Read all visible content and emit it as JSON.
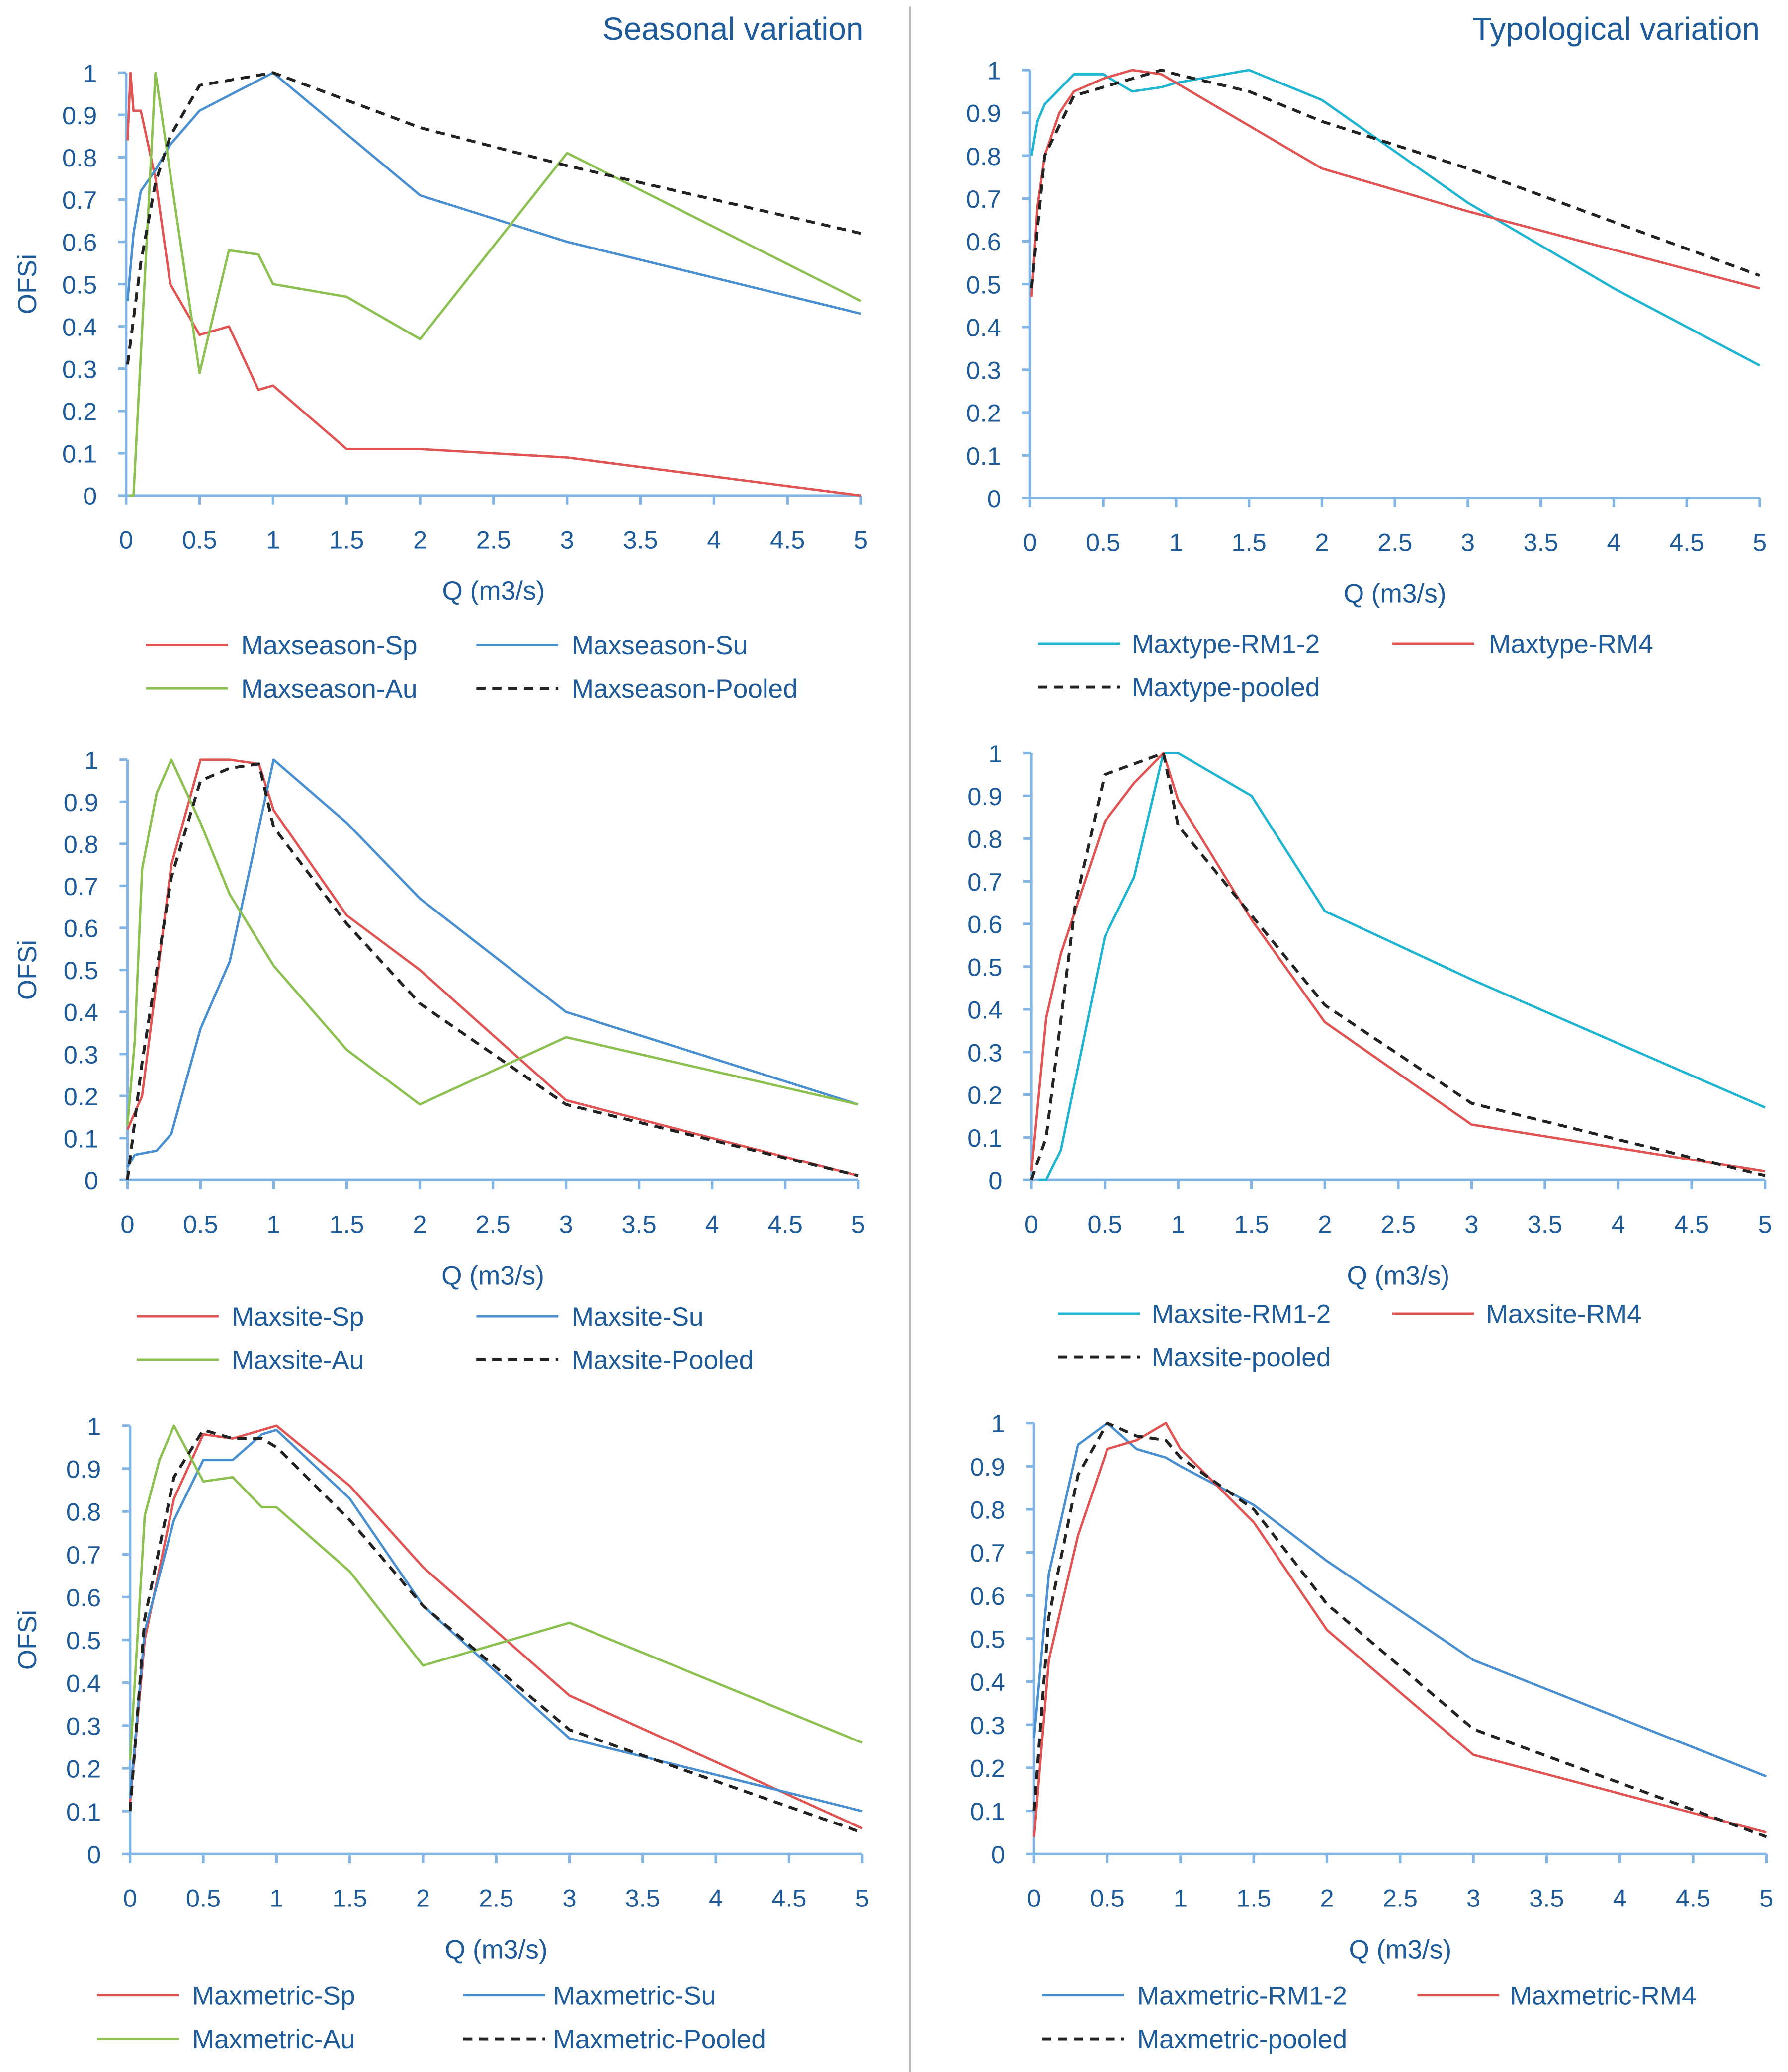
{
  "titles": {
    "left": "Seasonal variation",
    "right": "Typological variation"
  },
  "colors": {
    "red": "#e05454",
    "blue": "#4a8fd0",
    "green": "#8cc152",
    "cyan": "#1fb4cf",
    "black": "#222222",
    "axis": "#82b5e3",
    "divider": "#bbbbbb"
  },
  "chart_data": [
    {
      "type": "line",
      "panel": "seasonal-maxseason",
      "xlabel": "Q (m3/s)",
      "ylabel": "OFSi",
      "xlim": [
        0,
        5
      ],
      "ylim": [
        0,
        1
      ],
      "xticks": [
        "0",
        "0.5",
        "1",
        "1.5",
        "2",
        "2.5",
        "3",
        "3.5",
        "4",
        "4.5",
        "5"
      ],
      "yticks": [
        "0",
        "0.1",
        "0.2",
        "0.3",
        "0.4",
        "0.5",
        "0.6",
        "0.7",
        "0.8",
        "0.9",
        "1"
      ],
      "legend": "bottom",
      "series": [
        {
          "name": "Maxseason-Sp",
          "color": "red",
          "dash": false,
          "x": [
            0.01,
            0.03,
            0.05,
            0.1,
            0.2,
            0.3,
            0.5,
            0.7,
            0.9,
            1,
            1.5,
            2,
            3,
            5
          ],
          "y": [
            0.84,
            1.0,
            0.91,
            0.91,
            0.75,
            0.5,
            0.38,
            0.4,
            0.25,
            0.26,
            0.11,
            0.11,
            0.09,
            0.0
          ]
        },
        {
          "name": "Maxseason-Su",
          "color": "blue",
          "dash": false,
          "x": [
            0.01,
            0.05,
            0.1,
            0.2,
            0.3,
            0.5,
            1,
            2,
            3,
            5
          ],
          "y": [
            0.46,
            0.62,
            0.72,
            0.77,
            0.83,
            0.91,
            1.0,
            0.71,
            0.6,
            0.43
          ]
        },
        {
          "name": "Maxseason-Au",
          "color": "green",
          "dash": false,
          "x": [
            0.02,
            0.05,
            0.2,
            0.5,
            0.7,
            0.9,
            1,
            1.5,
            2,
            3,
            5
          ],
          "y": [
            0,
            0,
            1.0,
            0.29,
            0.58,
            0.57,
            0.5,
            0.47,
            0.37,
            0.81,
            0.46
          ]
        },
        {
          "name": "Maxseason-Pooled",
          "color": "black",
          "dash": true,
          "x": [
            0.01,
            0.1,
            0.2,
            0.3,
            0.5,
            1,
            2,
            3,
            5
          ],
          "y": [
            0.31,
            0.55,
            0.74,
            0.85,
            0.97,
            1.0,
            0.87,
            0.78,
            0.62
          ]
        }
      ]
    },
    {
      "type": "line",
      "panel": "typological-maxtype",
      "xlabel": "Q (m3/s)",
      "ylabel": "",
      "xlim": [
        0,
        5
      ],
      "ylim": [
        0,
        1
      ],
      "xticks": [
        "0",
        "0.5",
        "1",
        "1.5",
        "2",
        "2.5",
        "3",
        "3.5",
        "4",
        "4.5",
        "5"
      ],
      "yticks": [
        "0",
        "0.1",
        "0.2",
        "0.3",
        "0.4",
        "0.5",
        "0.6",
        "0.7",
        "0.8",
        "0.9",
        "1"
      ],
      "legend": "bottom",
      "series": [
        {
          "name": "Maxtype-RM1-2",
          "color": "cyan",
          "dash": false,
          "x": [
            0.01,
            0.05,
            0.1,
            0.3,
            0.5,
            0.7,
            0.9,
            1,
            1.5,
            2,
            3,
            4,
            5
          ],
          "y": [
            0.8,
            0.88,
            0.92,
            0.99,
            0.99,
            0.95,
            0.96,
            0.97,
            1.0,
            0.93,
            0.69,
            0.49,
            0.31
          ]
        },
        {
          "name": "Maxtype-RM4",
          "color": "red",
          "dash": false,
          "x": [
            0.01,
            0.05,
            0.1,
            0.2,
            0.3,
            0.5,
            0.7,
            0.9,
            1,
            2,
            3,
            5
          ],
          "y": [
            0.47,
            0.68,
            0.8,
            0.9,
            0.95,
            0.98,
            1.0,
            0.99,
            0.97,
            0.77,
            0.67,
            0.49
          ]
        },
        {
          "name": "Maxtype-pooled",
          "color": "black",
          "dash": true,
          "x": [
            0.01,
            0.1,
            0.3,
            0.5,
            0.7,
            0.9,
            1,
            1.5,
            2,
            3,
            5
          ],
          "y": [
            0.49,
            0.8,
            0.94,
            0.96,
            0.98,
            1.0,
            0.99,
            0.95,
            0.88,
            0.77,
            0.52
          ]
        }
      ]
    },
    {
      "type": "line",
      "panel": "seasonal-maxsite",
      "xlabel": "Q (m3/s)",
      "ylabel": "OFSi",
      "xlim": [
        0,
        5
      ],
      "ylim": [
        0,
        1
      ],
      "xticks": [
        "0",
        "0.5",
        "1",
        "1.5",
        "2",
        "2.5",
        "3",
        "3.5",
        "4",
        "4.5",
        "5"
      ],
      "yticks": [
        "0",
        "0.1",
        "0.2",
        "0.3",
        "0.4",
        "0.5",
        "0.6",
        "0.7",
        "0.8",
        "0.9",
        "1"
      ],
      "legend": "bottom",
      "series": [
        {
          "name": "Maxsite-Sp",
          "color": "red",
          "dash": false,
          "x": [
            0,
            0.1,
            0.3,
            0.5,
            0.7,
            0.9,
            1,
            1.5,
            2,
            3,
            5
          ],
          "y": [
            0.12,
            0.2,
            0.75,
            1.0,
            1.0,
            0.99,
            0.88,
            0.63,
            0.5,
            0.19,
            0.01
          ]
        },
        {
          "name": "Maxsite-Su",
          "color": "blue",
          "dash": false,
          "x": [
            0,
            0.05,
            0.2,
            0.3,
            0.5,
            0.7,
            1,
            1.5,
            2,
            3,
            5
          ],
          "y": [
            0.03,
            0.06,
            0.07,
            0.11,
            0.36,
            0.52,
            1.0,
            0.85,
            0.67,
            0.4,
            0.18
          ]
        },
        {
          "name": "Maxsite-Au",
          "color": "green",
          "dash": false,
          "x": [
            0,
            0.05,
            0.1,
            0.2,
            0.3,
            0.5,
            0.7,
            1,
            1.5,
            2,
            3,
            5
          ],
          "y": [
            0.13,
            0.33,
            0.74,
            0.92,
            1.0,
            0.85,
            0.68,
            0.51,
            0.31,
            0.18,
            0.34,
            0.18
          ]
        },
        {
          "name": "Maxsite-Pooled",
          "color": "black",
          "dash": true,
          "x": [
            0,
            0.1,
            0.3,
            0.5,
            0.7,
            0.9,
            1,
            1.5,
            2,
            3,
            5
          ],
          "y": [
            0.0,
            0.28,
            0.72,
            0.95,
            0.98,
            0.99,
            0.84,
            0.61,
            0.42,
            0.18,
            0.01
          ]
        }
      ]
    },
    {
      "type": "line",
      "panel": "typological-maxsite",
      "xlabel": "Q (m3/s)",
      "ylabel": "",
      "xlim": [
        0,
        5
      ],
      "ylim": [
        0,
        1
      ],
      "xticks": [
        "0",
        "0.5",
        "1",
        "1.5",
        "2",
        "2.5",
        "3",
        "3.5",
        "4",
        "4.5",
        "5"
      ],
      "yticks": [
        "0",
        "0.1",
        "0.2",
        "0.3",
        "0.4",
        "0.5",
        "0.6",
        "0.7",
        "0.8",
        "0.9",
        "1"
      ],
      "legend": "bottom",
      "series": [
        {
          "name": "Maxsite-RM1-2",
          "color": "cyan",
          "dash": false,
          "x": [
            0.05,
            0.1,
            0.2,
            0.5,
            0.7,
            0.9,
            1,
            1.5,
            2,
            3,
            5
          ],
          "y": [
            0,
            0.0,
            0.07,
            0.57,
            0.71,
            1.0,
            1.0,
            0.9,
            0.63,
            0.47,
            0.17
          ]
        },
        {
          "name": "Maxsite-RM4",
          "color": "red",
          "dash": false,
          "x": [
            0,
            0.1,
            0.2,
            0.5,
            0.7,
            0.9,
            1,
            1.5,
            2,
            3,
            5
          ],
          "y": [
            0.02,
            0.38,
            0.53,
            0.84,
            0.93,
            1.0,
            0.89,
            0.61,
            0.37,
            0.13,
            0.02
          ]
        },
        {
          "name": "Maxsite-pooled",
          "color": "black",
          "dash": true,
          "x": [
            0,
            0.1,
            0.3,
            0.5,
            0.9,
            1,
            1.5,
            2,
            3,
            5
          ],
          "y": [
            0.0,
            0.1,
            0.65,
            0.95,
            1.0,
            0.83,
            0.62,
            0.41,
            0.18,
            0.01
          ]
        }
      ]
    },
    {
      "type": "line",
      "panel": "seasonal-maxmetric",
      "xlabel": "Q (m3/s)",
      "ylabel": "OFSi",
      "xlim": [
        0,
        5
      ],
      "ylim": [
        0,
        1
      ],
      "xticks": [
        "0",
        "0.5",
        "1",
        "1.5",
        "2",
        "2.5",
        "3",
        "3.5",
        "4",
        "4.5",
        "5"
      ],
      "yticks": [
        "0",
        "0.1",
        "0.2",
        "0.3",
        "0.4",
        "0.5",
        "0.6",
        "0.7",
        "0.8",
        "0.9",
        "1"
      ],
      "legend": "bottom",
      "series": [
        {
          "name": "Maxmetric-Sp",
          "color": "red",
          "dash": false,
          "x": [
            0,
            0.1,
            0.3,
            0.5,
            0.7,
            1,
            1.5,
            2,
            3,
            5
          ],
          "y": [
            0.12,
            0.5,
            0.83,
            0.98,
            0.97,
            1.0,
            0.86,
            0.67,
            0.37,
            0.06
          ]
        },
        {
          "name": "Maxmetric-Su",
          "color": "blue",
          "dash": false,
          "x": [
            0,
            0.1,
            0.3,
            0.5,
            0.7,
            0.9,
            1,
            1.5,
            2,
            3,
            5
          ],
          "y": [
            0.13,
            0.52,
            0.78,
            0.92,
            0.92,
            0.98,
            0.99,
            0.83,
            0.58,
            0.27,
            0.1
          ]
        },
        {
          "name": "Maxmetric-Au",
          "color": "green",
          "dash": false,
          "x": [
            0,
            0.05,
            0.1,
            0.2,
            0.3,
            0.5,
            0.7,
            0.9,
            1,
            1.5,
            2,
            3,
            5
          ],
          "y": [
            0.22,
            0.5,
            0.79,
            0.92,
            1.0,
            0.87,
            0.88,
            0.81,
            0.81,
            0.66,
            0.44,
            0.54,
            0.26
          ]
        },
        {
          "name": "Maxmetric-Pooled",
          "color": "black",
          "dash": true,
          "x": [
            0,
            0.1,
            0.3,
            0.5,
            0.7,
            0.9,
            1,
            1.5,
            2,
            3,
            5
          ],
          "y": [
            0.1,
            0.55,
            0.88,
            0.99,
            0.97,
            0.97,
            0.95,
            0.78,
            0.58,
            0.29,
            0.05
          ]
        }
      ]
    },
    {
      "type": "line",
      "panel": "typological-maxmetric",
      "xlabel": "Q (m3/s)",
      "ylabel": "",
      "xlim": [
        0,
        5
      ],
      "ylim": [
        0,
        1
      ],
      "xticks": [
        "0",
        "0.5",
        "1",
        "1.5",
        "2",
        "2.5",
        "3",
        "3.5",
        "4",
        "4.5",
        "5"
      ],
      "yticks": [
        "0",
        "0.1",
        "0.2",
        "0.3",
        "0.4",
        "0.5",
        "0.6",
        "0.7",
        "0.8",
        "0.9",
        "1"
      ],
      "legend": "bottom",
      "series": [
        {
          "name": "Maxmetric-RM1-2",
          "color": "blue",
          "dash": false,
          "x": [
            0,
            0.1,
            0.3,
            0.5,
            0.7,
            0.9,
            1,
            1.5,
            2,
            3,
            5
          ],
          "y": [
            0.27,
            0.65,
            0.95,
            1.0,
            0.94,
            0.92,
            0.9,
            0.81,
            0.68,
            0.45,
            0.18
          ]
        },
        {
          "name": "Maxmetric-RM4",
          "color": "red",
          "dash": false,
          "x": [
            0,
            0.1,
            0.3,
            0.5,
            0.7,
            0.9,
            1,
            1.5,
            2,
            3,
            5
          ],
          "y": [
            0.04,
            0.45,
            0.74,
            0.94,
            0.96,
            1.0,
            0.94,
            0.77,
            0.52,
            0.23,
            0.05
          ]
        },
        {
          "name": "Maxmetric-pooled",
          "color": "black",
          "dash": true,
          "x": [
            0,
            0.1,
            0.3,
            0.5,
            0.7,
            0.9,
            1,
            1.5,
            2,
            3,
            5
          ],
          "y": [
            0.1,
            0.55,
            0.88,
            1.0,
            0.97,
            0.96,
            0.92,
            0.8,
            0.58,
            0.29,
            0.04
          ]
        }
      ]
    }
  ]
}
